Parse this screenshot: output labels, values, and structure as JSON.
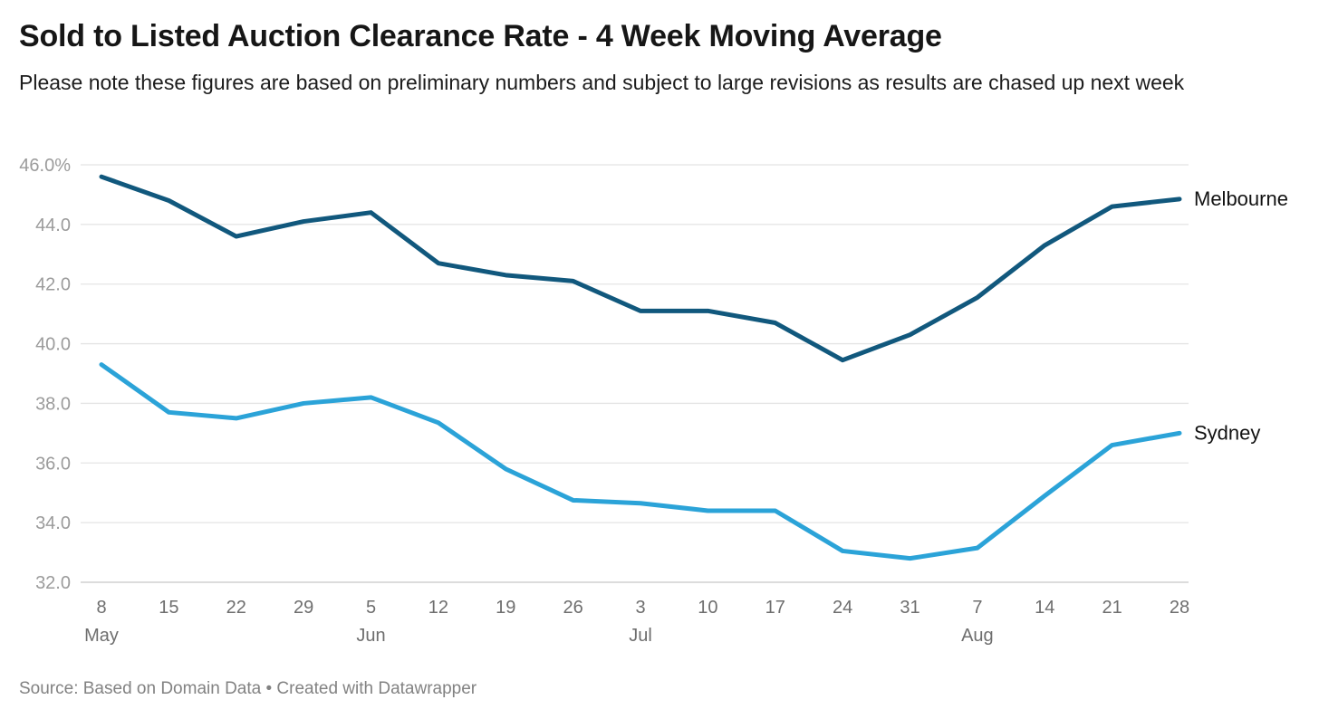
{
  "header": {
    "title": "Sold to Listed Auction Clearance Rate - 4 Week Moving Average",
    "subtitle": "Please note these figures are based on preliminary numbers and subject to large revisions as results are chased up next week"
  },
  "footer": {
    "source": "Source: Based on Domain Data • Created with Datawrapper"
  },
  "colors": {
    "melbourne_line": "#11587d",
    "sydney_line": "#2ba3d8",
    "gridline": "#e4e4e4",
    "axis_baseline": "#d0d0d0",
    "y_label": "#9b9b9b",
    "x_label": "#6e6e6e",
    "series_label": "#121212"
  },
  "chart_data": {
    "type": "line",
    "title": "Sold to Listed Auction Clearance Rate - 4 Week Moving Average",
    "x": [
      "8",
      "15",
      "22",
      "29",
      "5",
      "12",
      "19",
      "26",
      "3",
      "10",
      "17",
      "24",
      "31",
      "7",
      "14",
      "21",
      "28"
    ],
    "month_labels": [
      {
        "index": 0,
        "label": "May"
      },
      {
        "index": 4,
        "label": "Jun"
      },
      {
        "index": 8,
        "label": "Jul"
      },
      {
        "index": 13,
        "label": "Aug"
      }
    ],
    "series": [
      {
        "name": "Melbourne",
        "color": "#11587d",
        "values": [
          45.6,
          44.8,
          43.6,
          44.1,
          44.4,
          42.7,
          42.3,
          42.1,
          41.1,
          41.1,
          40.7,
          39.45,
          40.3,
          41.55,
          43.3,
          44.6,
          44.85
        ]
      },
      {
        "name": "Sydney",
        "color": "#2ba3d8",
        "values": [
          39.3,
          37.7,
          37.5,
          38.0,
          38.2,
          37.35,
          35.8,
          34.75,
          34.65,
          34.4,
          34.4,
          33.05,
          32.8,
          33.15,
          34.9,
          36.6,
          37.0
        ]
      }
    ],
    "yticks": [
      {
        "value": 46,
        "label": "46.0%"
      },
      {
        "value": 44,
        "label": "44.0"
      },
      {
        "value": 42,
        "label": "42.0"
      },
      {
        "value": 40,
        "label": "40.0"
      },
      {
        "value": 38,
        "label": "38.0"
      },
      {
        "value": 36,
        "label": "36.0"
      },
      {
        "value": 34,
        "label": "34.0"
      },
      {
        "value": 32,
        "label": "32.0"
      }
    ],
    "ylim": [
      32,
      46
    ],
    "grid": "horizontal",
    "legend_position": "line-end",
    "y_unit": "%"
  }
}
